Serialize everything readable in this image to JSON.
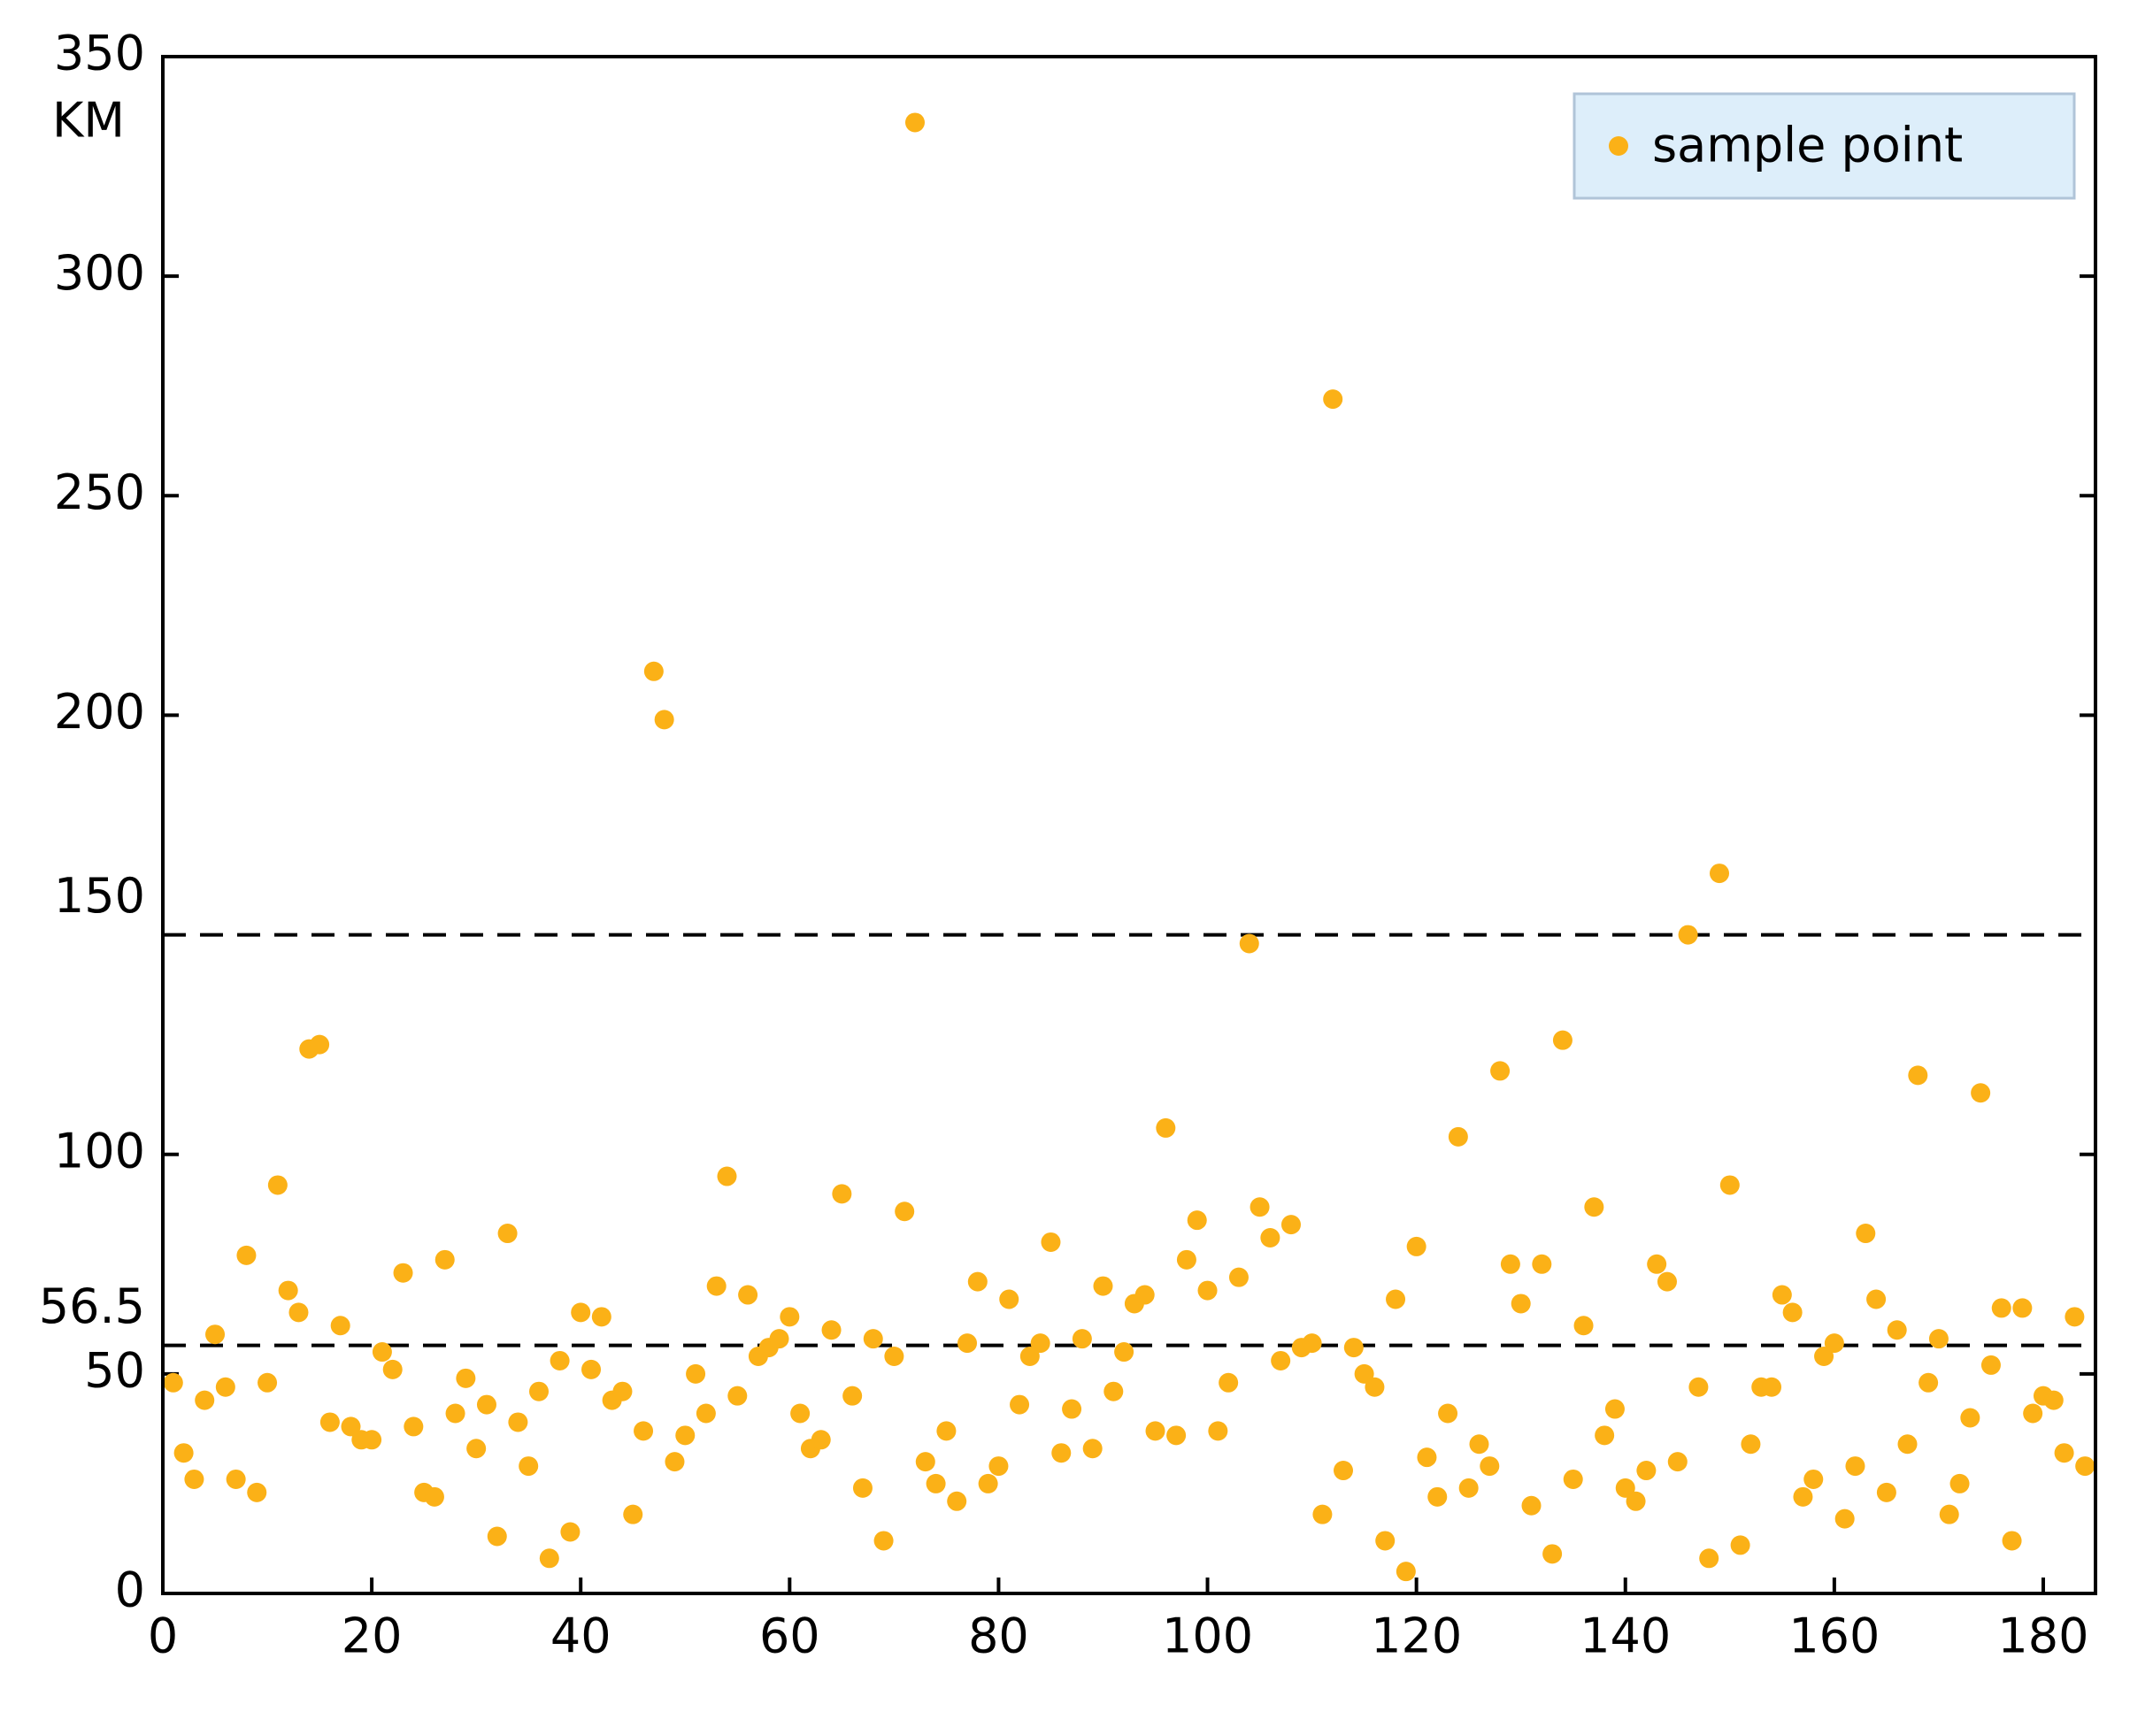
{
  "chart_data": {
    "type": "scatter",
    "y_label": "KM",
    "xlim": [
      0,
      185
    ],
    "xticks": [
      0,
      20,
      40,
      60,
      80,
      100,
      120,
      140,
      160,
      180
    ],
    "ylim": [
      0,
      350
    ],
    "yticks": [
      0,
      50,
      56.5,
      100,
      150,
      200,
      250,
      300,
      350
    ],
    "reference_lines": [
      56.5,
      150
    ],
    "legend_position": "upper right",
    "series": [
      {
        "name": "sample point",
        "color": "#fbb117",
        "x": [
          1,
          2,
          3,
          4,
          5,
          6,
          7,
          8,
          9,
          10,
          11,
          12,
          13,
          14,
          15,
          16,
          17,
          18,
          19,
          20,
          21,
          22,
          23,
          24,
          25,
          26,
          27,
          28,
          29,
          30,
          31,
          32,
          33,
          34,
          35,
          36,
          37,
          38,
          39,
          40,
          41,
          42,
          43,
          44,
          45,
          46,
          47,
          48,
          49,
          50,
          51,
          52,
          53,
          54,
          55,
          56,
          57,
          58,
          59,
          60,
          61,
          62,
          63,
          64,
          65,
          66,
          67,
          68,
          69,
          70,
          71,
          72,
          73,
          74,
          75,
          76,
          77,
          78,
          79,
          80,
          81,
          82,
          83,
          84,
          85,
          86,
          87,
          88,
          89,
          90,
          91,
          92,
          93,
          94,
          95,
          96,
          97,
          98,
          99,
          100,
          101,
          102,
          103,
          104,
          105,
          106,
          107,
          108,
          109,
          110,
          111,
          112,
          113,
          114,
          115,
          116,
          117,
          118,
          119,
          120,
          121,
          122,
          123,
          124,
          125,
          126,
          127,
          128,
          129,
          130,
          131,
          132,
          133,
          134,
          135,
          136,
          137,
          138,
          139,
          140,
          141,
          142,
          143,
          144,
          145,
          146,
          147,
          148,
          149,
          150,
          151,
          152,
          153,
          154,
          155,
          156,
          157,
          158,
          159,
          160,
          161,
          162,
          163,
          164,
          165,
          166,
          167,
          168,
          169,
          170,
          171,
          172,
          173,
          174,
          175,
          176,
          177,
          178,
          179,
          180,
          181,
          182,
          183,
          184
        ],
        "values": [
          48,
          32,
          26,
          44,
          59,
          47,
          26,
          77,
          23,
          48,
          93,
          69,
          64,
          124,
          125,
          39,
          61,
          38,
          35,
          35,
          55,
          51,
          73,
          38,
          23,
          22,
          76,
          41,
          49,
          33,
          43,
          13,
          82,
          39,
          29,
          46,
          8,
          53,
          14,
          64,
          51,
          63,
          44,
          46,
          18,
          37,
          210,
          199,
          30,
          36,
          50,
          41,
          70,
          95,
          45,
          68,
          54,
          56,
          58,
          63,
          41,
          33,
          35,
          60,
          91,
          45,
          24,
          58,
          12,
          54,
          87,
          335,
          30,
          25,
          37,
          21,
          57,
          71,
          25,
          29,
          67,
          43,
          54,
          57,
          80,
          32,
          42,
          58,
          33,
          70,
          46,
          55,
          66,
          68,
          37,
          106,
          36,
          76,
          85,
          69,
          37,
          48,
          72,
          148,
          88,
          81,
          53,
          84,
          56,
          57,
          18,
          272,
          28,
          56,
          50,
          47,
          12,
          67,
          5,
          79,
          31,
          22,
          41,
          104,
          24,
          34,
          29,
          119,
          75,
          66,
          20,
          75,
          9,
          126,
          26,
          61,
          88,
          36,
          42,
          24,
          21,
          28,
          75,
          71,
          30,
          150,
          47,
          8,
          164,
          93,
          11,
          34,
          47,
          47,
          68,
          64,
          22,
          26,
          54,
          57,
          17,
          29,
          82,
          67,
          23,
          60,
          34,
          118,
          48,
          58,
          18,
          25,
          40,
          114,
          52,
          65,
          12,
          65,
          41,
          45,
          44,
          32,
          63,
          29
        ]
      }
    ]
  }
}
